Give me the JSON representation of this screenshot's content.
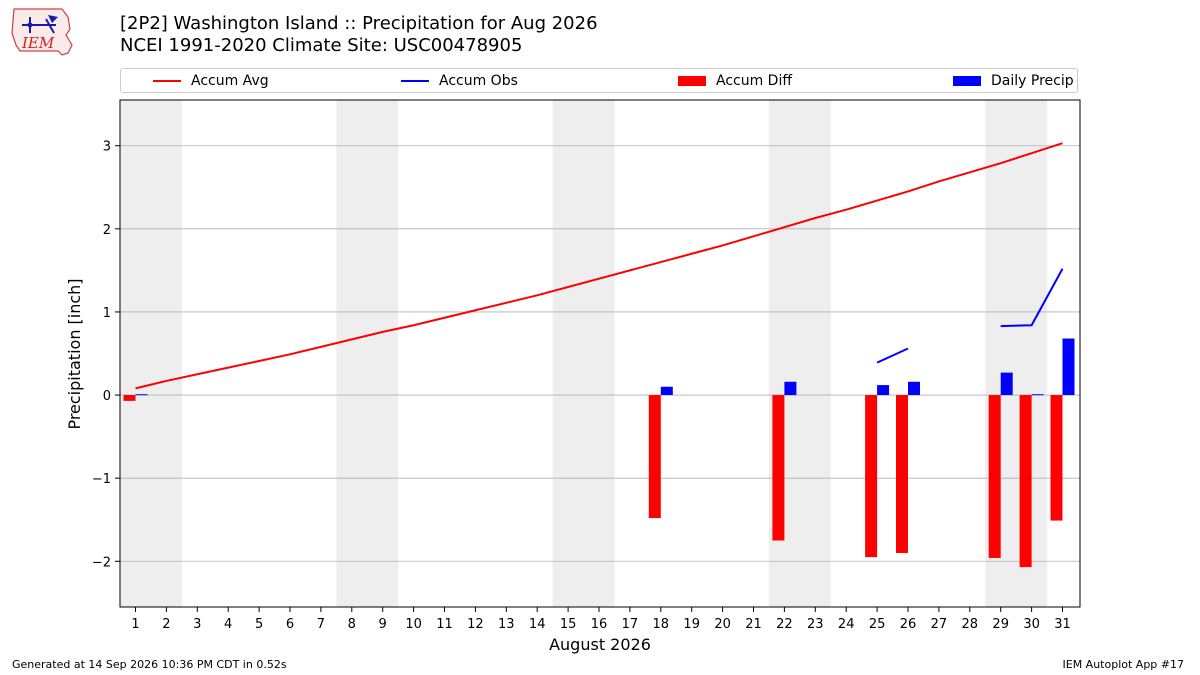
{
  "header": {
    "title_line1": "[2P2] Washington Island :: Precipitation for Aug 2026",
    "title_line2": "NCEI 1991-2020 Climate Site: USC00478905",
    "logo_text": "IEM"
  },
  "footer": {
    "left": "Generated at 14 Sep 2026 10:36 PM CDT in 0.52s",
    "right": "IEM Autoplot App #17"
  },
  "colors": {
    "avg": "#ff0000",
    "obs": "#0000ff",
    "diff": "#ff0000",
    "daily": "#0000ff",
    "weekend_shade": "#eeeeee",
    "grid": "#b0b0b0"
  },
  "chart_data": {
    "type": "bar",
    "title": "[2P2] Washington Island :: Precipitation for Aug 2026",
    "xlabel": "August 2026",
    "ylabel": "Precipitation [inch]",
    "ylim": [
      -2.55,
      3.55
    ],
    "yticks": [
      -2,
      -1,
      0,
      1,
      2,
      3
    ],
    "ytick_labels": [
      "−2",
      "−1",
      "0",
      "1",
      "2",
      "3"
    ],
    "grid": "horizontal",
    "legend_position": "top",
    "legend": [
      "Accum Avg",
      "Accum Obs",
      "Accum Diff",
      "Daily Precip"
    ],
    "days": [
      1,
      2,
      3,
      4,
      5,
      6,
      7,
      8,
      9,
      10,
      11,
      12,
      13,
      14,
      15,
      16,
      17,
      18,
      19,
      20,
      21,
      22,
      23,
      24,
      25,
      26,
      27,
      28,
      29,
      30,
      31
    ],
    "weekend_days": [
      1,
      2,
      8,
      9,
      15,
      16,
      22,
      23,
      29,
      30
    ],
    "series": [
      {
        "name": "Accum Avg",
        "kind": "line",
        "values": [
          0.08,
          0.17,
          0.25,
          0.33,
          0.41,
          0.49,
          0.58,
          0.67,
          0.76,
          0.84,
          0.93,
          1.02,
          1.11,
          1.2,
          1.3,
          1.4,
          1.5,
          1.6,
          1.7,
          1.8,
          1.91,
          2.02,
          2.13,
          2.23,
          2.34,
          2.45,
          2.57,
          2.68,
          2.79,
          2.91,
          3.03
        ]
      },
      {
        "name": "Accum Obs",
        "kind": "line",
        "values": [
          null,
          null,
          null,
          null,
          null,
          null,
          null,
          null,
          null,
          null,
          null,
          null,
          null,
          null,
          null,
          null,
          null,
          null,
          null,
          null,
          null,
          null,
          null,
          null,
          0.39,
          0.56,
          null,
          null,
          0.83,
          0.84,
          1.52
        ]
      },
      {
        "name": "Accum Diff",
        "kind": "bar",
        "values": [
          -0.07,
          0,
          0,
          0,
          0,
          0,
          0,
          0,
          0,
          0,
          0,
          0,
          0,
          0,
          0,
          0,
          0,
          -1.48,
          0,
          0,
          0,
          -1.75,
          0,
          0,
          -1.95,
          -1.9,
          0,
          0,
          -1.96,
          -2.07,
          -1.51
        ]
      },
      {
        "name": "Daily Precip",
        "kind": "bar",
        "values": [
          0.01,
          0,
          0,
          0,
          0,
          0,
          0,
          0,
          0,
          0,
          0,
          0,
          0,
          0,
          0,
          0,
          0,
          0.1,
          0,
          0,
          0,
          0.16,
          0,
          0,
          0.12,
          0.16,
          0,
          0,
          0.27,
          0.01,
          0.68
        ]
      }
    ]
  }
}
